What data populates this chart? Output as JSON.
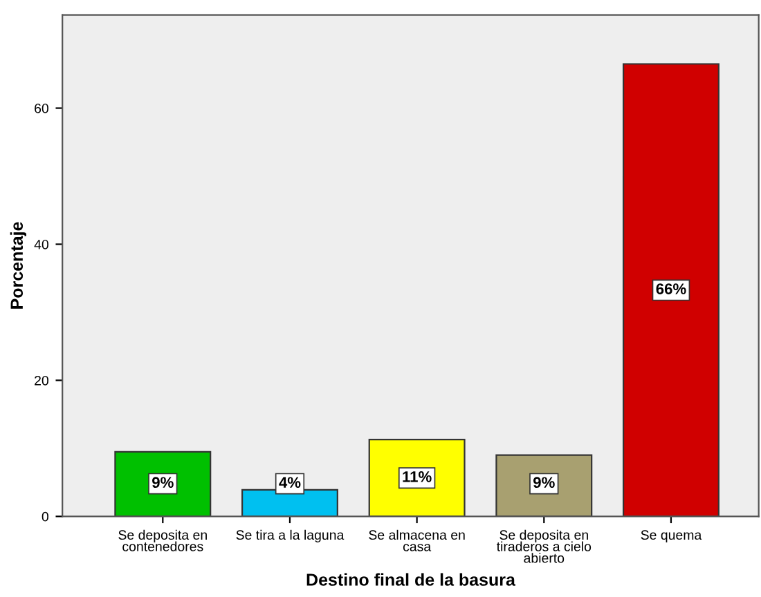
{
  "chart_data": {
    "type": "bar",
    "xlabel": "Destino final de la basura",
    "ylabel": "Porcentaje",
    "categories": [
      "Se deposita en\ncontenedores",
      "Se tira a la laguna",
      "Se almacena en\ncasa",
      "Se deposita en\ntiraderos a cielo\nabierto",
      "Se quema"
    ],
    "values": [
      9.5,
      3.9,
      11.3,
      9.0,
      66.5
    ],
    "colors": [
      "#00c000",
      "#00c0f0",
      "#ffff00",
      "#a8a070",
      "#d00000"
    ],
    "value_labels": [
      "9%",
      "4%",
      "11%",
      "9%",
      "66%"
    ],
    "ylim": [
      0,
      73.7
    ],
    "yticks": [
      0,
      20,
      40,
      60
    ],
    "grid": false,
    "legend": false
  }
}
